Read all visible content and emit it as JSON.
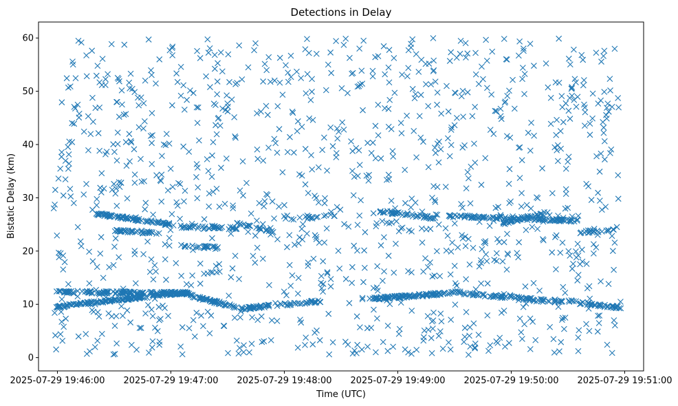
{
  "chart_data": {
    "type": "scatter",
    "title": "Detections in Delay",
    "xlabel": "Time (UTC)",
    "ylabel": "Bistatic Delay (km)",
    "marker": "x",
    "color": "#1f77b4",
    "grid": false,
    "xlim": [
      "2025-07-29 19:45:50",
      "2025-07-29 19:51:10"
    ],
    "ylim": [
      -2.5,
      63
    ],
    "x_ticks": [
      "2025-07-29 19:46:00",
      "2025-07-29 19:47:00",
      "2025-07-29 19:48:00",
      "2025-07-29 19:49:00",
      "2025-07-29 19:50:00",
      "2025-07-29 19:51:00"
    ],
    "y_ticks": [
      "0",
      "10",
      "20",
      "30",
      "40",
      "50",
      "60"
    ],
    "tracks": [
      {
        "x_start": "2025-07-29 19:45:59",
        "x_end": "2025-07-29 19:47:10",
        "y_start": 12.3,
        "y_end": 12.1,
        "count": 140
      },
      {
        "x_start": "2025-07-29 19:45:59",
        "x_end": "2025-07-29 19:47:05",
        "y_start": 9.5,
        "y_end": 12.2,
        "count": 160
      },
      {
        "x_start": "2025-07-29 19:47:05",
        "x_end": "2025-07-29 19:47:40",
        "y_start": 12.1,
        "y_end": 9.0,
        "count": 60
      },
      {
        "x_start": "2025-07-29 19:47:40",
        "x_end": "2025-07-29 19:48:20",
        "y_start": 9.3,
        "y_end": 10.6,
        "count": 60
      },
      {
        "x_start": "2025-07-29 19:48:45",
        "x_end": "2025-07-29 19:49:35",
        "y_start": 11.0,
        "y_end": 12.3,
        "count": 110
      },
      {
        "x_start": "2025-07-29 19:49:35",
        "x_end": "2025-07-29 19:50:10",
        "y_start": 12.0,
        "y_end": 11.0,
        "count": 50
      },
      {
        "x_start": "2025-07-29 19:50:10",
        "x_end": "2025-07-29 19:50:35",
        "y_start": 10.8,
        "y_end": 10.5,
        "count": 30
      },
      {
        "x_start": "2025-07-29 19:50:35",
        "x_end": "2025-07-29 19:50:58",
        "y_start": 10.3,
        "y_end": 9.4,
        "count": 40
      },
      {
        "x_start": "2025-07-29 19:46:20",
        "x_end": "2025-07-29 19:47:00",
        "y_start": 27.0,
        "y_end": 25.0,
        "count": 80
      },
      {
        "x_start": "2025-07-29 19:46:30",
        "x_end": "2025-07-29 19:46:55",
        "y_start": 23.8,
        "y_end": 23.4,
        "count": 40
      },
      {
        "x_start": "2025-07-29 19:47:05",
        "x_end": "2025-07-29 19:47:35",
        "y_start": 24.6,
        "y_end": 24.3,
        "count": 40
      },
      {
        "x_start": "2025-07-29 19:47:07",
        "x_end": "2025-07-29 19:47:25",
        "y_start": 21.0,
        "y_end": 20.6,
        "count": 25
      },
      {
        "x_start": "2025-07-29 19:47:35",
        "x_end": "2025-07-29 19:47:55",
        "y_start": 25.2,
        "y_end": 23.5,
        "count": 25
      },
      {
        "x_start": "2025-07-29 19:48:10",
        "x_end": "2025-07-29 19:48:27",
        "y_start": 26.2,
        "y_end": 26.7,
        "count": 15
      },
      {
        "x_start": "2025-07-29 19:48:50",
        "x_end": "2025-07-29 19:49:20",
        "y_start": 27.5,
        "y_end": 26.2,
        "count": 45
      },
      {
        "x_start": "2025-07-29 19:49:27",
        "x_end": "2025-07-29 19:50:35",
        "y_start": 26.6,
        "y_end": 25.7,
        "count": 110
      },
      {
        "x_start": "2025-07-29 19:49:55",
        "x_end": "2025-07-29 19:50:20",
        "y_start": 25.2,
        "y_end": 27.3,
        "count": 40
      },
      {
        "x_start": "2025-07-29 19:50:35",
        "x_end": "2025-07-29 19:50:55",
        "y_start": 23.5,
        "y_end": 24.0,
        "count": 20
      }
    ],
    "noise": {
      "x_start": "2025-07-29 19:45:58",
      "x_end": "2025-07-29 19:50:58",
      "y_start": 0.5,
      "y_end": 60,
      "count": 1150
    }
  }
}
